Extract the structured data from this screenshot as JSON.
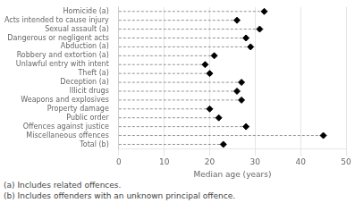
{
  "chart_data": {
    "type": "lollipop",
    "orientation": "horizontal",
    "categories": [
      "Homicide (a)",
      "Acts intended to cause injury",
      "Sexual assault (a)",
      "Dangerous or negligent acts",
      "Abduction (a)",
      "Robbery and extortion (a)",
      "Unlawful entry with intent",
      "Theft (a)",
      "Deception (a)",
      "Illicit drugs",
      "Weapons and explosives",
      "Property damage",
      "Public order",
      "Offences against justice",
      "Miscellaneous offences",
      "Total (b)"
    ],
    "values": [
      32,
      26,
      31,
      28,
      29,
      21,
      19,
      20,
      27,
      26,
      27,
      20,
      22,
      28,
      45,
      23
    ],
    "x_label": "Median age (years)",
    "xlim": [
      0,
      50
    ],
    "xticks": [
      0,
      10,
      20,
      30,
      40,
      50
    ],
    "color": "#000000",
    "marker": "diamond",
    "line_style": "dashed",
    "grid": "x",
    "annotations": [
      "(a) Includes related offences.",
      "(b) Includes offenders with an unknown principal offence."
    ]
  }
}
